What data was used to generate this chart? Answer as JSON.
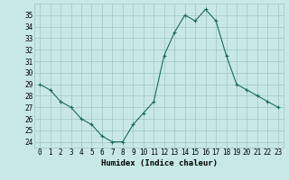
{
  "x": [
    0,
    1,
    2,
    3,
    4,
    5,
    6,
    7,
    8,
    9,
    10,
    11,
    12,
    13,
    14,
    15,
    16,
    17,
    18,
    19,
    20,
    21,
    22,
    23
  ],
  "y": [
    29,
    28.5,
    27.5,
    27,
    26,
    25.5,
    24.5,
    24,
    24,
    25.5,
    26.5,
    27.5,
    31.5,
    33.5,
    35,
    34.5,
    35.5,
    34.5,
    31.5,
    29,
    28.5,
    28,
    27.5,
    27
  ],
  "xlabel": "Humidex (Indice chaleur)",
  "ylim": [
    23.5,
    36
  ],
  "xlim": [
    -0.5,
    23.5
  ],
  "yticks": [
    24,
    25,
    26,
    27,
    28,
    29,
    30,
    31,
    32,
    33,
    34,
    35
  ],
  "xticks": [
    0,
    1,
    2,
    3,
    4,
    5,
    6,
    7,
    8,
    9,
    10,
    11,
    12,
    13,
    14,
    15,
    16,
    17,
    18,
    19,
    20,
    21,
    22,
    23
  ],
  "line_color": "#1a6b5a",
  "marker": "+",
  "bg_color": "#c8e8e8",
  "grid_color": "#a0c4c4",
  "label_fontsize": 6.5,
  "tick_fontsize": 5.5
}
